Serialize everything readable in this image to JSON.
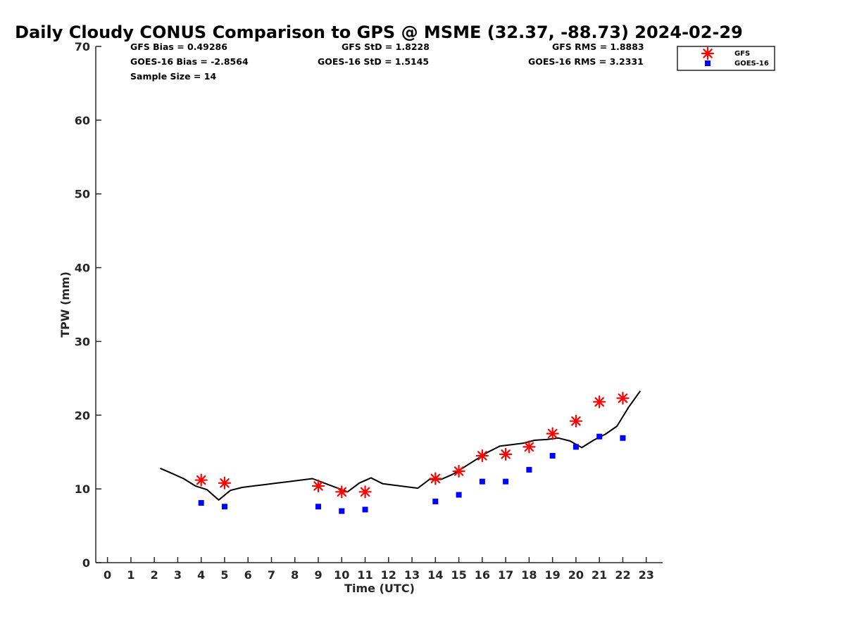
{
  "chart_data": {
    "type": "scatter",
    "title": "Daily Cloudy CONUS Comparison to GPS @ MSME (32.37, -88.73) 2024-02-29",
    "xlabel": "Time (UTC)",
    "ylabel": "TPW (mm)",
    "xlim": [
      -0.5,
      23.7
    ],
    "ylim": [
      0,
      70
    ],
    "x_ticks": [
      0,
      1,
      2,
      3,
      4,
      5,
      6,
      7,
      8,
      9,
      10,
      11,
      12,
      13,
      14,
      15,
      16,
      17,
      18,
      19,
      20,
      21,
      22,
      23
    ],
    "y_ticks": [
      0,
      10,
      20,
      30,
      40,
      50,
      60,
      70
    ],
    "grid": false,
    "legend_position": "top-right",
    "stats": {
      "gfs_bias": "GFS Bias = 0.49286",
      "gfs_std": "GFS StD = 1.8228",
      "gfs_rms": "GFS RMS = 1.8883",
      "goes_bias": "GOES-16 Bias = -2.8564",
      "goes_std": "GOES-16 StD = 1.5145",
      "goes_rms": "GOES-16 RMS = 3.2331",
      "sample_size": "Sample Size = 14"
    },
    "gps_line": {
      "x": [
        2.25,
        2.75,
        3.25,
        3.75,
        4.25,
        4.75,
        5.25,
        5.75,
        6.25,
        6.75,
        7.25,
        7.75,
        8.25,
        8.75,
        9.25,
        9.75,
        10.25,
        10.75,
        11.25,
        11.75,
        12.25,
        12.75,
        13.25,
        13.75,
        14.25,
        14.75,
        15.25,
        15.75,
        16.25,
        16.75,
        17.25,
        17.75,
        18.25,
        18.75,
        19.25,
        19.75,
        20.25,
        20.75,
        21.25,
        21.75,
        22.25,
        22.75
      ],
      "y": [
        12.8,
        12.1,
        11.4,
        10.4,
        9.9,
        8.5,
        9.8,
        10.2,
        10.4,
        10.6,
        10.8,
        11.0,
        11.2,
        11.4,
        10.8,
        10.2,
        9.6,
        10.8,
        11.5,
        10.7,
        10.5,
        10.3,
        10.1,
        11.3,
        11.3,
        12.0,
        13.0,
        14.0,
        15.0,
        15.8,
        16.0,
        16.2,
        16.6,
        16.7,
        16.9,
        16.5,
        15.6,
        16.6,
        17.4,
        18.5,
        21.1,
        23.3
      ]
    },
    "series": [
      {
        "name": "GFS",
        "marker": "asterisk",
        "color": "#ff0000",
        "x": [
          4,
          5,
          9,
          10,
          11,
          14,
          15,
          16,
          17,
          18,
          19,
          20,
          21,
          22
        ],
        "y": [
          11.2,
          10.8,
          10.4,
          9.6,
          9.6,
          11.4,
          12.4,
          14.5,
          14.7,
          15.7,
          17.5,
          19.2,
          21.8,
          22.3
        ]
      },
      {
        "name": "GOES-16",
        "marker": "square",
        "color": "#0000ff",
        "x": [
          4,
          5,
          9,
          10,
          11,
          14,
          15,
          16,
          17,
          18,
          19,
          20,
          21,
          22
        ],
        "y": [
          8.1,
          7.6,
          7.6,
          7.0,
          7.2,
          8.3,
          9.2,
          11.0,
          11.0,
          12.6,
          14.5,
          15.7,
          17.1,
          16.9
        ]
      }
    ]
  }
}
